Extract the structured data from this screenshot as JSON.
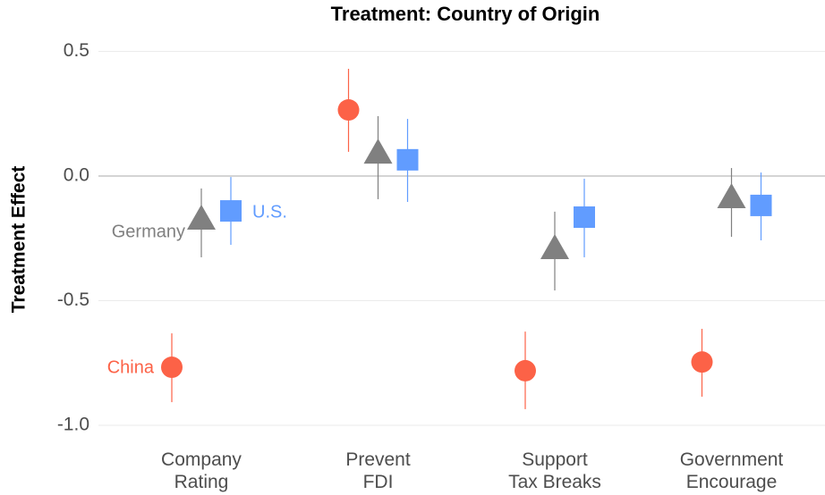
{
  "chart_data": {
    "type": "dotwhisker",
    "title": "Treatment: Country of Origin",
    "y_label": "Treatment Effect",
    "categories": [
      [
        "Company",
        "Rating"
      ],
      [
        "Prevent",
        "FDI"
      ],
      [
        "Support",
        "Tax Breaks"
      ],
      [
        "Government",
        "Encourage"
      ]
    ],
    "ylim": [
      -1.05,
      0.55
    ],
    "yticks": [
      {
        "value": 0.5,
        "label": "0.5"
      },
      {
        "value": 0,
        "label": "0.0"
      },
      {
        "value": -0.5,
        "label": "-0.5"
      },
      {
        "value": -1,
        "label": "-1.0"
      }
    ],
    "grid": true,
    "hline": 0,
    "series": [
      {
        "name": "China",
        "color": "#fc6247",
        "marker": "circle",
        "values": [
          -0.767,
          0.265,
          -0.781,
          -0.746
        ],
        "lower": [
          -0.907,
          0.097,
          -0.935,
          -0.885
        ],
        "upper": [
          -0.631,
          0.43,
          -0.624,
          -0.613
        ]
      },
      {
        "name": "Germany",
        "color": "#808080",
        "marker": "triangle",
        "values": [
          -0.183,
          0.082,
          -0.301,
          -0.097
        ],
        "lower": [
          -0.326,
          -0.093,
          -0.459,
          -0.244
        ],
        "upper": [
          -0.05,
          0.24,
          -0.143,
          0.032
        ]
      },
      {
        "name": "U.S.",
        "color": "#619cff",
        "marker": "square",
        "values": [
          -0.14,
          0.065,
          -0.165,
          -0.118
        ],
        "lower": [
          -0.276,
          -0.104,
          -0.326,
          -0.258
        ],
        "upper": [
          -0.004,
          0.229,
          -0.011,
          0.014
        ]
      }
    ]
  }
}
